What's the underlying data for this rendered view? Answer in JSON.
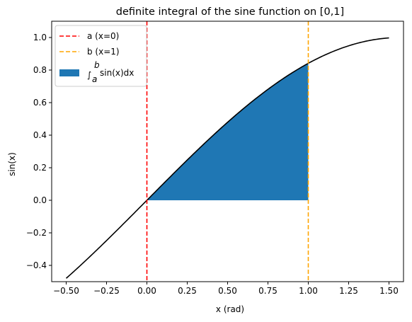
{
  "chart_data": {
    "type": "line",
    "title": "definite integral of the sine function on [0,1]",
    "xlabel": "x (rad)",
    "ylabel": "sin(x)",
    "xlim": [
      -0.59,
      1.59
    ],
    "ylim": [
      -0.5,
      1.1
    ],
    "xticks": [
      -0.5,
      -0.25,
      0.0,
      0.25,
      0.5,
      0.75,
      1.0,
      1.25,
      1.5
    ],
    "xtick_labels": [
      "−0.50",
      "−0.25",
      "0.00",
      "0.25",
      "0.50",
      "0.75",
      "1.00",
      "1.25",
      "1.50"
    ],
    "yticks": [
      -0.4,
      -0.2,
      0.0,
      0.2,
      0.4,
      0.6,
      0.8,
      1.0
    ],
    "ytick_labels": [
      "−0.4",
      "−0.2",
      "0.0",
      "0.2",
      "0.4",
      "0.6",
      "0.8",
      "1.0"
    ],
    "grid": false,
    "legend_position": "top-left",
    "curve": {
      "function": "sin",
      "x_range": [
        -0.5,
        1.5
      ],
      "color": "#000000"
    },
    "fill": {
      "x_range": [
        0,
        1
      ],
      "color": "#1f77b4"
    },
    "vlines": [
      {
        "x": 0,
        "color": "#ff0000"
      },
      {
        "x": 1,
        "color": "#ffa500"
      }
    ],
    "legend": [
      {
        "label": "a (x=0)",
        "kind": "dashed-line",
        "color": "#ff0000"
      },
      {
        "label": "b (x=1)",
        "kind": "dashed-line",
        "color": "#ffa500"
      },
      {
        "label_main": "sin(x)dx",
        "label_integral_upper": "b",
        "label_integral_lower": "a",
        "label_integral_sign": "∫",
        "kind": "patch",
        "color": "#1f77b4"
      }
    ]
  }
}
